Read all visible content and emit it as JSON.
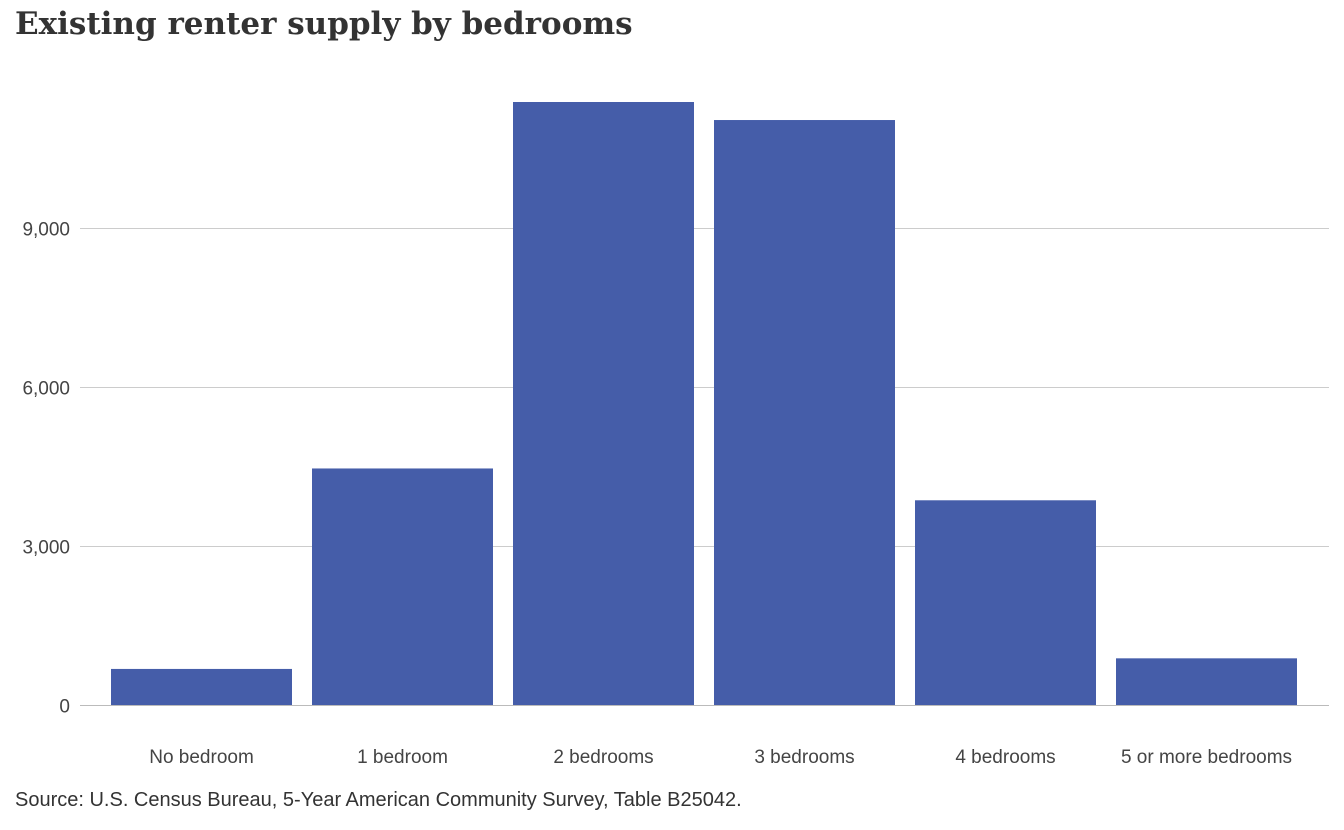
{
  "chart_data": {
    "type": "bar",
    "title": "Existing renter supply by bedrooms",
    "xlabel": "",
    "ylabel": "",
    "categories": [
      "No bedroom",
      "1 bedroom",
      "2 bedrooms",
      "3 bedrooms",
      "4 bedrooms",
      "5 or more bedrooms"
    ],
    "values": [
      680,
      4460,
      11370,
      11030,
      3860,
      880
    ],
    "ylim": [
      0,
      11370
    ],
    "yticks": [
      0,
      3000,
      6000,
      9000
    ],
    "ytick_labels": [
      "0",
      "3,000",
      "6,000",
      "9,000"
    ],
    "grid": true,
    "legend": "none",
    "colors": {
      "bar": "#455da9",
      "grid": "#cccccc",
      "axis": "#bbbbbb"
    }
  },
  "source": "Source: U.S. Census Bureau, 5-Year  American Community Survey, Table B25042."
}
